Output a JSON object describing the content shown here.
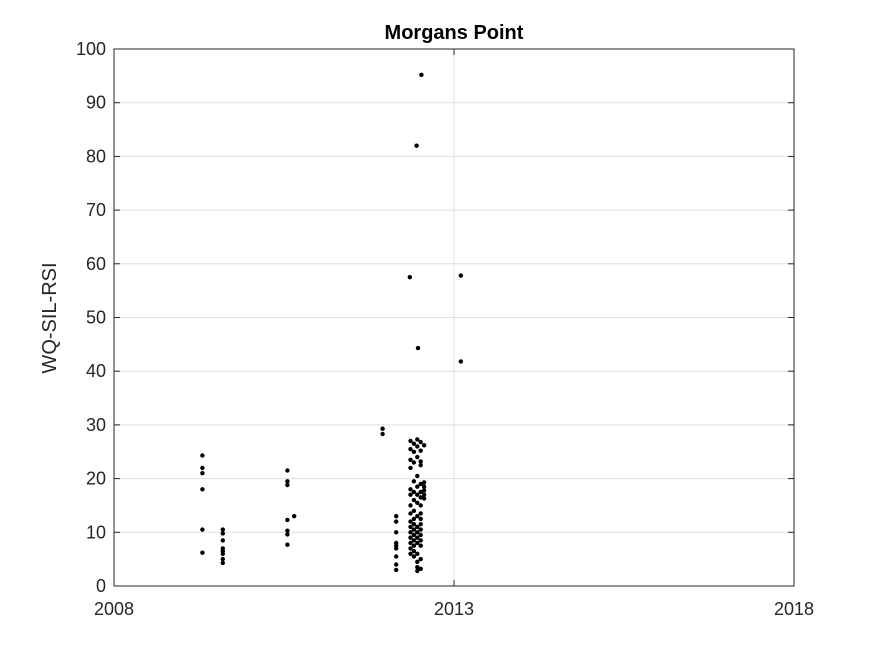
{
  "chart_data": {
    "type": "scatter",
    "title": "Morgans Point",
    "xlabel": "",
    "ylabel": "WQ-SIL-RSI",
    "xlim": [
      2008,
      2018
    ],
    "ylim": [
      0,
      100
    ],
    "xticks": [
      2008,
      2013,
      2018
    ],
    "yticks": [
      0,
      10,
      20,
      30,
      40,
      50,
      60,
      70,
      80,
      90,
      100
    ],
    "grid": "on",
    "marker_color": "#000000",
    "series": [
      {
        "points": [
          [
            2009.3,
            24.3
          ],
          [
            2009.3,
            22.0
          ],
          [
            2009.3,
            21.0
          ],
          [
            2009.3,
            18.0
          ],
          [
            2009.3,
            10.5
          ],
          [
            2009.3,
            6.2
          ],
          [
            2009.6,
            10.5
          ],
          [
            2009.6,
            9.8
          ],
          [
            2009.6,
            8.5
          ],
          [
            2009.6,
            7.0
          ],
          [
            2009.6,
            6.5
          ],
          [
            2009.6,
            6.0
          ],
          [
            2009.6,
            5.0
          ],
          [
            2009.6,
            4.3
          ],
          [
            2010.55,
            21.5
          ],
          [
            2010.55,
            19.5
          ],
          [
            2010.55,
            18.8
          ],
          [
            2010.55,
            12.3
          ],
          [
            2010.55,
            10.3
          ],
          [
            2010.55,
            9.6
          ],
          [
            2010.55,
            7.7
          ],
          [
            2010.65,
            13.0
          ],
          [
            2011.95,
            29.3
          ],
          [
            2011.95,
            28.3
          ],
          [
            2012.15,
            13.0
          ],
          [
            2012.15,
            12.0
          ],
          [
            2012.15,
            10.0
          ],
          [
            2012.15,
            8.0
          ],
          [
            2012.15,
            7.5
          ],
          [
            2012.15,
            7.0
          ],
          [
            2012.15,
            5.5
          ],
          [
            2012.15,
            4.0
          ],
          [
            2012.15,
            3.0
          ],
          [
            2012.35,
            57.5
          ],
          [
            2012.45,
            82.0
          ],
          [
            2012.47,
            44.3
          ],
          [
            2012.52,
            95.2
          ],
          [
            2013.1,
            57.8
          ],
          [
            2013.1,
            41.8
          ],
          [
            2012.36,
            27.0
          ],
          [
            2012.36,
            25.5
          ],
          [
            2012.36,
            23.5
          ],
          [
            2012.36,
            22.0
          ],
          [
            2012.36,
            18.0
          ],
          [
            2012.36,
            17.0
          ],
          [
            2012.36,
            15.0
          ],
          [
            2012.36,
            13.5
          ],
          [
            2012.36,
            12.0
          ],
          [
            2012.36,
            11.0
          ],
          [
            2012.36,
            10.0
          ],
          [
            2012.36,
            9.0
          ],
          [
            2012.36,
            8.0
          ],
          [
            2012.36,
            7.0
          ],
          [
            2012.36,
            6.0
          ],
          [
            2012.41,
            26.5
          ],
          [
            2012.41,
            25.0
          ],
          [
            2012.41,
            23.0
          ],
          [
            2012.41,
            19.5
          ],
          [
            2012.41,
            17.5
          ],
          [
            2012.41,
            16.0
          ],
          [
            2012.41,
            14.0
          ],
          [
            2012.41,
            12.5
          ],
          [
            2012.41,
            11.5
          ],
          [
            2012.41,
            10.5
          ],
          [
            2012.41,
            9.5
          ],
          [
            2012.41,
            8.5
          ],
          [
            2012.41,
            7.5
          ],
          [
            2012.41,
            6.5
          ],
          [
            2012.41,
            5.5
          ],
          [
            2012.46,
            27.3
          ],
          [
            2012.46,
            26.0
          ],
          [
            2012.46,
            24.0
          ],
          [
            2012.46,
            20.5
          ],
          [
            2012.46,
            18.5
          ],
          [
            2012.46,
            17.0
          ],
          [
            2012.46,
            15.5
          ],
          [
            2012.46,
            13.0
          ],
          [
            2012.46,
            11.0
          ],
          [
            2012.46,
            10.0
          ],
          [
            2012.46,
            9.0
          ],
          [
            2012.46,
            8.0
          ],
          [
            2012.46,
            6.0
          ],
          [
            2012.46,
            4.5
          ],
          [
            2012.46,
            3.5
          ],
          [
            2012.46,
            2.8
          ],
          [
            2012.51,
            26.8
          ],
          [
            2012.51,
            25.2
          ],
          [
            2012.51,
            23.2
          ],
          [
            2012.51,
            22.5
          ],
          [
            2012.51,
            19.0
          ],
          [
            2012.51,
            17.5
          ],
          [
            2012.51,
            16.5
          ],
          [
            2012.51,
            15.0
          ],
          [
            2012.51,
            13.5
          ],
          [
            2012.51,
            12.5
          ],
          [
            2012.51,
            11.5
          ],
          [
            2012.51,
            10.5
          ],
          [
            2012.51,
            9.5
          ],
          [
            2012.51,
            8.5
          ],
          [
            2012.51,
            7.5
          ],
          [
            2012.51,
            5.0
          ],
          [
            2012.51,
            3.2
          ],
          [
            2012.56,
            26.2
          ],
          [
            2012.56,
            19.3
          ],
          [
            2012.56,
            18.5
          ],
          [
            2012.56,
            17.8
          ],
          [
            2012.56,
            17.0
          ],
          [
            2012.56,
            16.3
          ]
        ]
      }
    ]
  }
}
